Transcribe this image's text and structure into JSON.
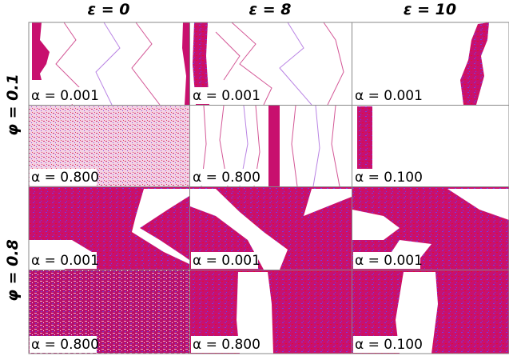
{
  "column_headers": [
    "ε = 0",
    "ε = 8",
    "ε = 10"
  ],
  "row_headers": [
    "φ = 0.1",
    "φ = 0.8"
  ],
  "panels": [
    [
      "α = 0.001",
      "α = 0.001",
      "α = 0.001"
    ],
    [
      "α = 0.800",
      "α = 0.800",
      "α = 0.100"
    ],
    [
      "α = 0.001",
      "α = 0.001",
      "α = 0.001"
    ],
    [
      "α = 0.800",
      "α = 0.800",
      "α = 0.100"
    ]
  ]
}
